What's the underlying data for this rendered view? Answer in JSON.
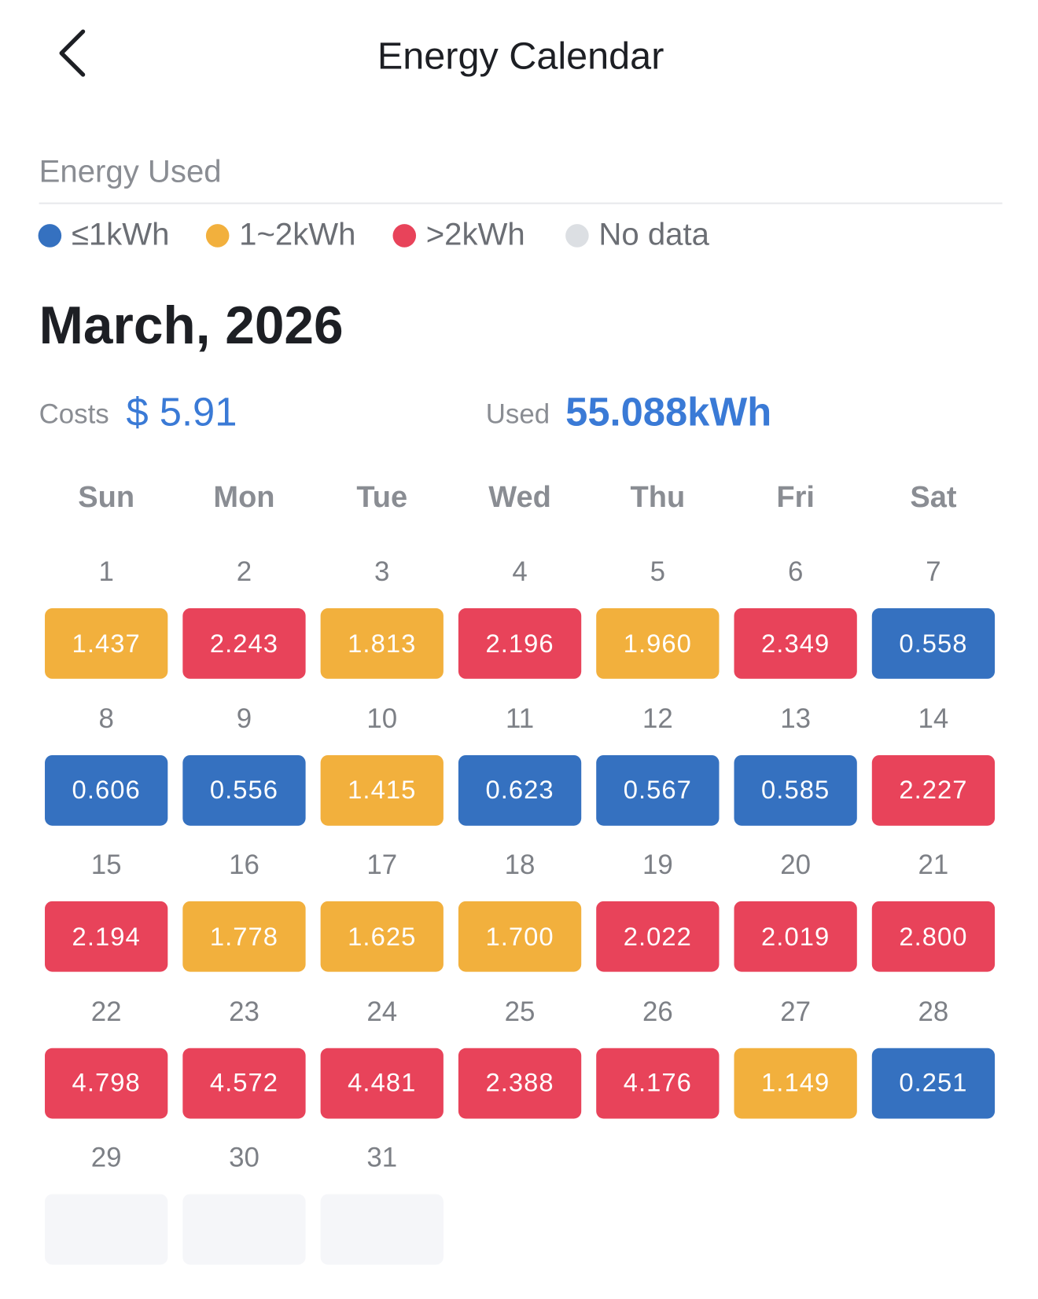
{
  "header": {
    "title": "Energy Calendar"
  },
  "section_label": "Energy Used",
  "legend": [
    {
      "label": "≤1kWh",
      "color": "#3571c0"
    },
    {
      "label": "1~2kWh",
      "color": "#f2b03d"
    },
    {
      "label": ">2kWh",
      "color": "#e8435a"
    },
    {
      "label": "No data",
      "color": "#dcdfe3"
    }
  ],
  "month": "March, 2026",
  "summary": {
    "costs_label": "Costs",
    "costs_value": "$ 5.91",
    "used_label": "Used",
    "used_value": "55.088kWh"
  },
  "weekdays": [
    "Sun",
    "Mon",
    "Tue",
    "Wed",
    "Thu",
    "Fri",
    "Sat"
  ],
  "days": [
    {
      "day": "1",
      "value": "1.437",
      "color": "#f2b03d"
    },
    {
      "day": "2",
      "value": "2.243",
      "color": "#e8435a"
    },
    {
      "day": "3",
      "value": "1.813",
      "color": "#f2b03d"
    },
    {
      "day": "4",
      "value": "2.196",
      "color": "#e8435a"
    },
    {
      "day": "5",
      "value": "1.960",
      "color": "#f2b03d"
    },
    {
      "day": "6",
      "value": "2.349",
      "color": "#e8435a"
    },
    {
      "day": "7",
      "value": "0.558",
      "color": "#3571c0"
    },
    {
      "day": "8",
      "value": "0.606",
      "color": "#3571c0"
    },
    {
      "day": "9",
      "value": "0.556",
      "color": "#3571c0"
    },
    {
      "day": "10",
      "value": "1.415",
      "color": "#f2b03d"
    },
    {
      "day": "11",
      "value": "0.623",
      "color": "#3571c0"
    },
    {
      "day": "12",
      "value": "0.567",
      "color": "#3571c0"
    },
    {
      "day": "13",
      "value": "0.585",
      "color": "#3571c0"
    },
    {
      "day": "14",
      "value": "2.227",
      "color": "#e8435a"
    },
    {
      "day": "15",
      "value": "2.194",
      "color": "#e8435a"
    },
    {
      "day": "16",
      "value": "1.778",
      "color": "#f2b03d"
    },
    {
      "day": "17",
      "value": "1.625",
      "color": "#f2b03d"
    },
    {
      "day": "18",
      "value": "1.700",
      "color": "#f2b03d"
    },
    {
      "day": "19",
      "value": "2.022",
      "color": "#e8435a"
    },
    {
      "day": "20",
      "value": "2.019",
      "color": "#e8435a"
    },
    {
      "day": "21",
      "value": "2.800",
      "color": "#e8435a"
    },
    {
      "day": "22",
      "value": "4.798",
      "color": "#e8435a"
    },
    {
      "day": "23",
      "value": "4.572",
      "color": "#e8435a"
    },
    {
      "day": "24",
      "value": "4.481",
      "color": "#e8435a"
    },
    {
      "day": "25",
      "value": "2.388",
      "color": "#e8435a"
    },
    {
      "day": "26",
      "value": "4.176",
      "color": "#e8435a"
    },
    {
      "day": "27",
      "value": "1.149",
      "color": "#f2b03d"
    },
    {
      "day": "28",
      "value": "0.251",
      "color": "#3571c0"
    },
    {
      "day": "29",
      "value": null,
      "color": "#f5f6f9"
    },
    {
      "day": "30",
      "value": null,
      "color": "#f5f6f9"
    },
    {
      "day": "31",
      "value": null,
      "color": "#f5f6f9"
    }
  ]
}
